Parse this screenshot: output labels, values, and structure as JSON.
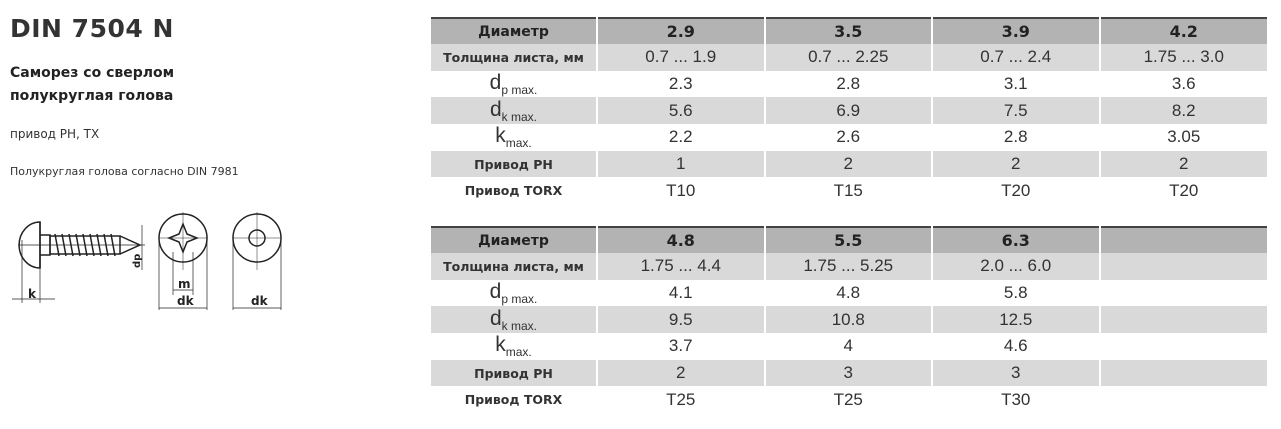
{
  "title": "DIN 7504 N",
  "subtitle_line1": "Саморез со сверлом",
  "subtitle_line2": "полукруглая голова",
  "drive_text": "привод PH, TX",
  "note": "Полукруглая голова согласно DIN 7981",
  "drawing_labels": {
    "k": "k",
    "dp": "dp",
    "m": "m",
    "dk1": "dk",
    "dk2": "dk"
  },
  "row_labels": {
    "diameter": "Диаметр",
    "thickness": "Толщина листа, мм",
    "dp_main": "d",
    "dp_sub": "p max.",
    "dk_main": "d",
    "dk_sub": "k max.",
    "k_main": "k",
    "k_sub": "max.",
    "ph": "Привод PH",
    "torx": "Привод TORX"
  },
  "tables": [
    {
      "columns": [
        {
          "diameter": "2.9",
          "thickness": "0.7  ...  1.9",
          "dp": "2.3",
          "dk": "5.6",
          "k": "2.2",
          "ph": "1",
          "torx": "T10"
        },
        {
          "diameter": "3.5",
          "thickness": "0.7  ...  2.25",
          "dp": "2.8",
          "dk": "6.9",
          "k": "2.6",
          "ph": "2",
          "torx": "T15"
        },
        {
          "diameter": "3.9",
          "thickness": "0.7  ...  2.4",
          "dp": "3.1",
          "dk": "7.5",
          "k": "2.8",
          "ph": "2",
          "torx": "T20"
        },
        {
          "diameter": "4.2",
          "thickness": "1.75  ...  3.0",
          "dp": "3.6",
          "dk": "8.2",
          "k": "3.05",
          "ph": "2",
          "torx": "T20"
        }
      ]
    },
    {
      "columns": [
        {
          "diameter": "4.8",
          "thickness": "1.75  ...  4.4",
          "dp": "4.1",
          "dk": "9.5",
          "k": "3.7",
          "ph": "2",
          "torx": "T25"
        },
        {
          "diameter": "5.5",
          "thickness": "1.75  ...  5.25",
          "dp": "4.8",
          "dk": "10.8",
          "k": "4",
          "ph": "3",
          "torx": "T25"
        },
        {
          "diameter": "6.3",
          "thickness": "2.0  ...  6.0",
          "dp": "5.8",
          "dk": "12.5",
          "k": "4.6",
          "ph": "3",
          "torx": "T30"
        },
        {
          "diameter": "",
          "thickness": "",
          "dp": "",
          "dk": "",
          "k": "",
          "ph": "",
          "torx": ""
        }
      ]
    }
  ]
}
